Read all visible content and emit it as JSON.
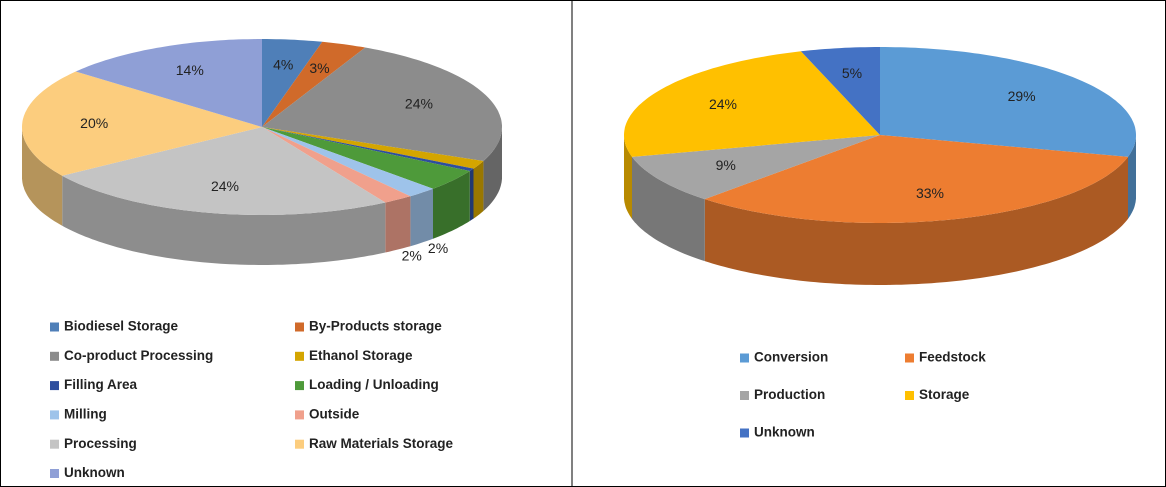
{
  "chart_data": [
    {
      "type": "pie",
      "categories": [
        "Biodiesel Storage",
        "By-Products storage",
        "Co-product Processing",
        "Ethanol Storage",
        "Filling Area",
        "Loading / Unloading",
        "Milling",
        "Outside",
        "Processing",
        "Raw Materials Storage",
        "Unknown"
      ],
      "values": [
        4,
        3,
        24,
        1.5,
        0.5,
        4,
        2,
        2,
        24,
        20,
        14
      ],
      "value_labels": [
        "4%",
        "3%",
        "24%",
        null,
        null,
        null,
        "2%",
        "2%",
        "24%",
        "20%",
        "14%"
      ],
      "colors": [
        "#4f7fb8",
        "#d06a2a",
        "#8c8c8c",
        "#d4a500",
        "#2e4e9e",
        "#4e9a3a",
        "#9ec3ea",
        "#f0a08c",
        "#c4c4c4",
        "#fccd7e",
        "#8f9fd6"
      ]
    },
    {
      "type": "pie",
      "categories": [
        "Conversion",
        "Feedstock",
        "Production",
        "Storage",
        "Unknown"
      ],
      "values": [
        29,
        33,
        9,
        24,
        5
      ],
      "value_labels": [
        "29%",
        "33%",
        "9%",
        "24%",
        "5%"
      ],
      "colors": [
        "#5b9bd5",
        "#ed7d31",
        "#a5a5a5",
        "#ffc000",
        "#4472c4"
      ]
    }
  ]
}
